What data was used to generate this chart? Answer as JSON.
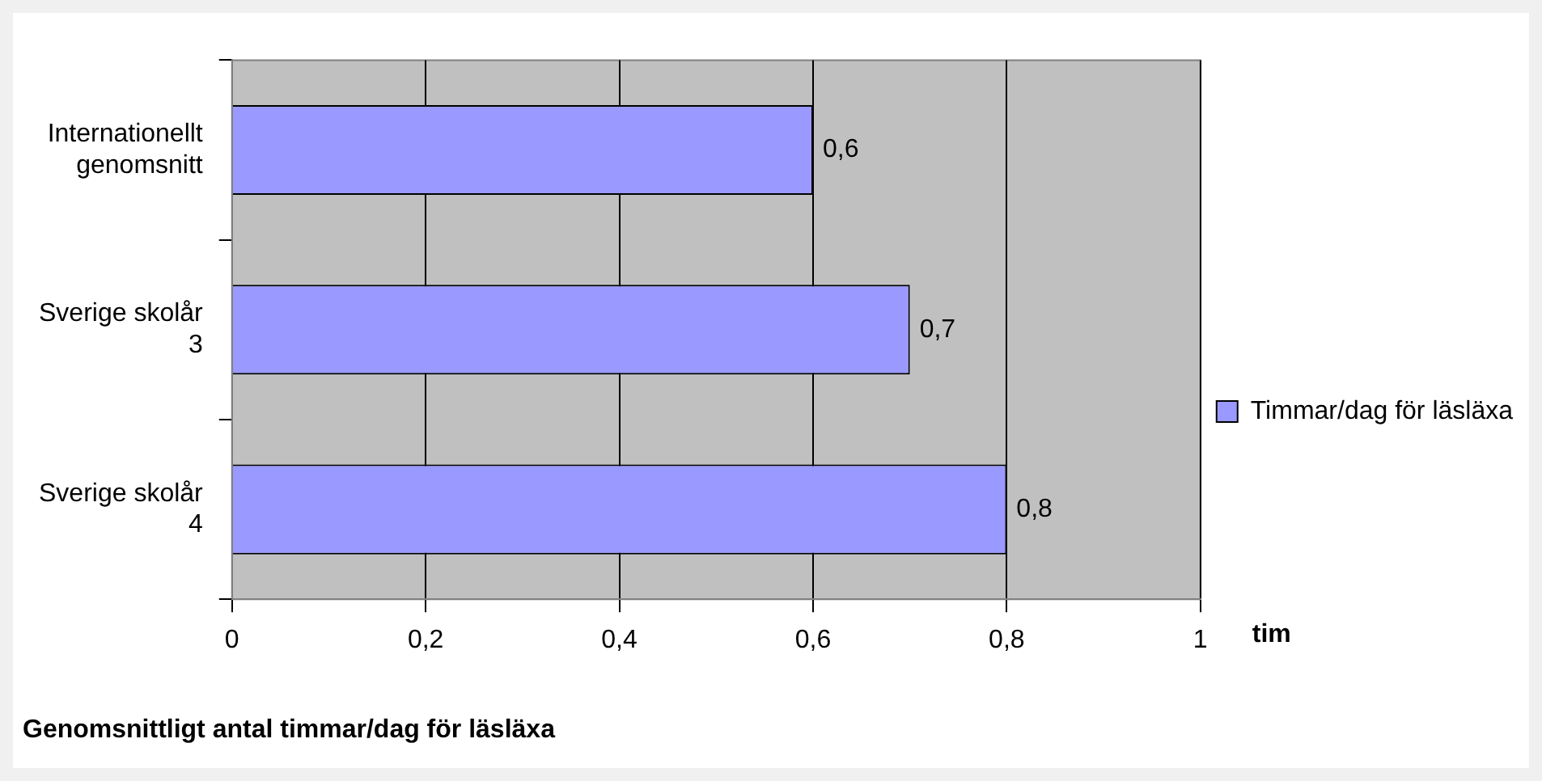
{
  "chart_data": {
    "type": "bar",
    "orientation": "horizontal",
    "title": "Genomsnittligt antal timmar/dag för läsläxa",
    "xlabel": "tim",
    "categories": [
      "Internationellt genomsnitt",
      "Sverige skolår 3",
      "Sverige skolår 4"
    ],
    "series": [
      {
        "name": "Timmar/dag för läsläxa",
        "color": "#9999ff",
        "values": [
          0.6,
          0.7,
          0.8
        ],
        "value_labels": [
          "0,6",
          "0,7",
          "0,8"
        ]
      }
    ],
    "xlim": [
      0,
      1
    ],
    "xticks": [
      {
        "value": 0,
        "label": "0"
      },
      {
        "value": 0.2,
        "label": "0,2"
      },
      {
        "value": 0.4,
        "label": "0,4"
      },
      {
        "value": 0.6,
        "label": "0,6"
      },
      {
        "value": 0.8,
        "label": "0,8"
      },
      {
        "value": 1,
        "label": "1"
      }
    ],
    "grid": "x",
    "legend": "right"
  }
}
